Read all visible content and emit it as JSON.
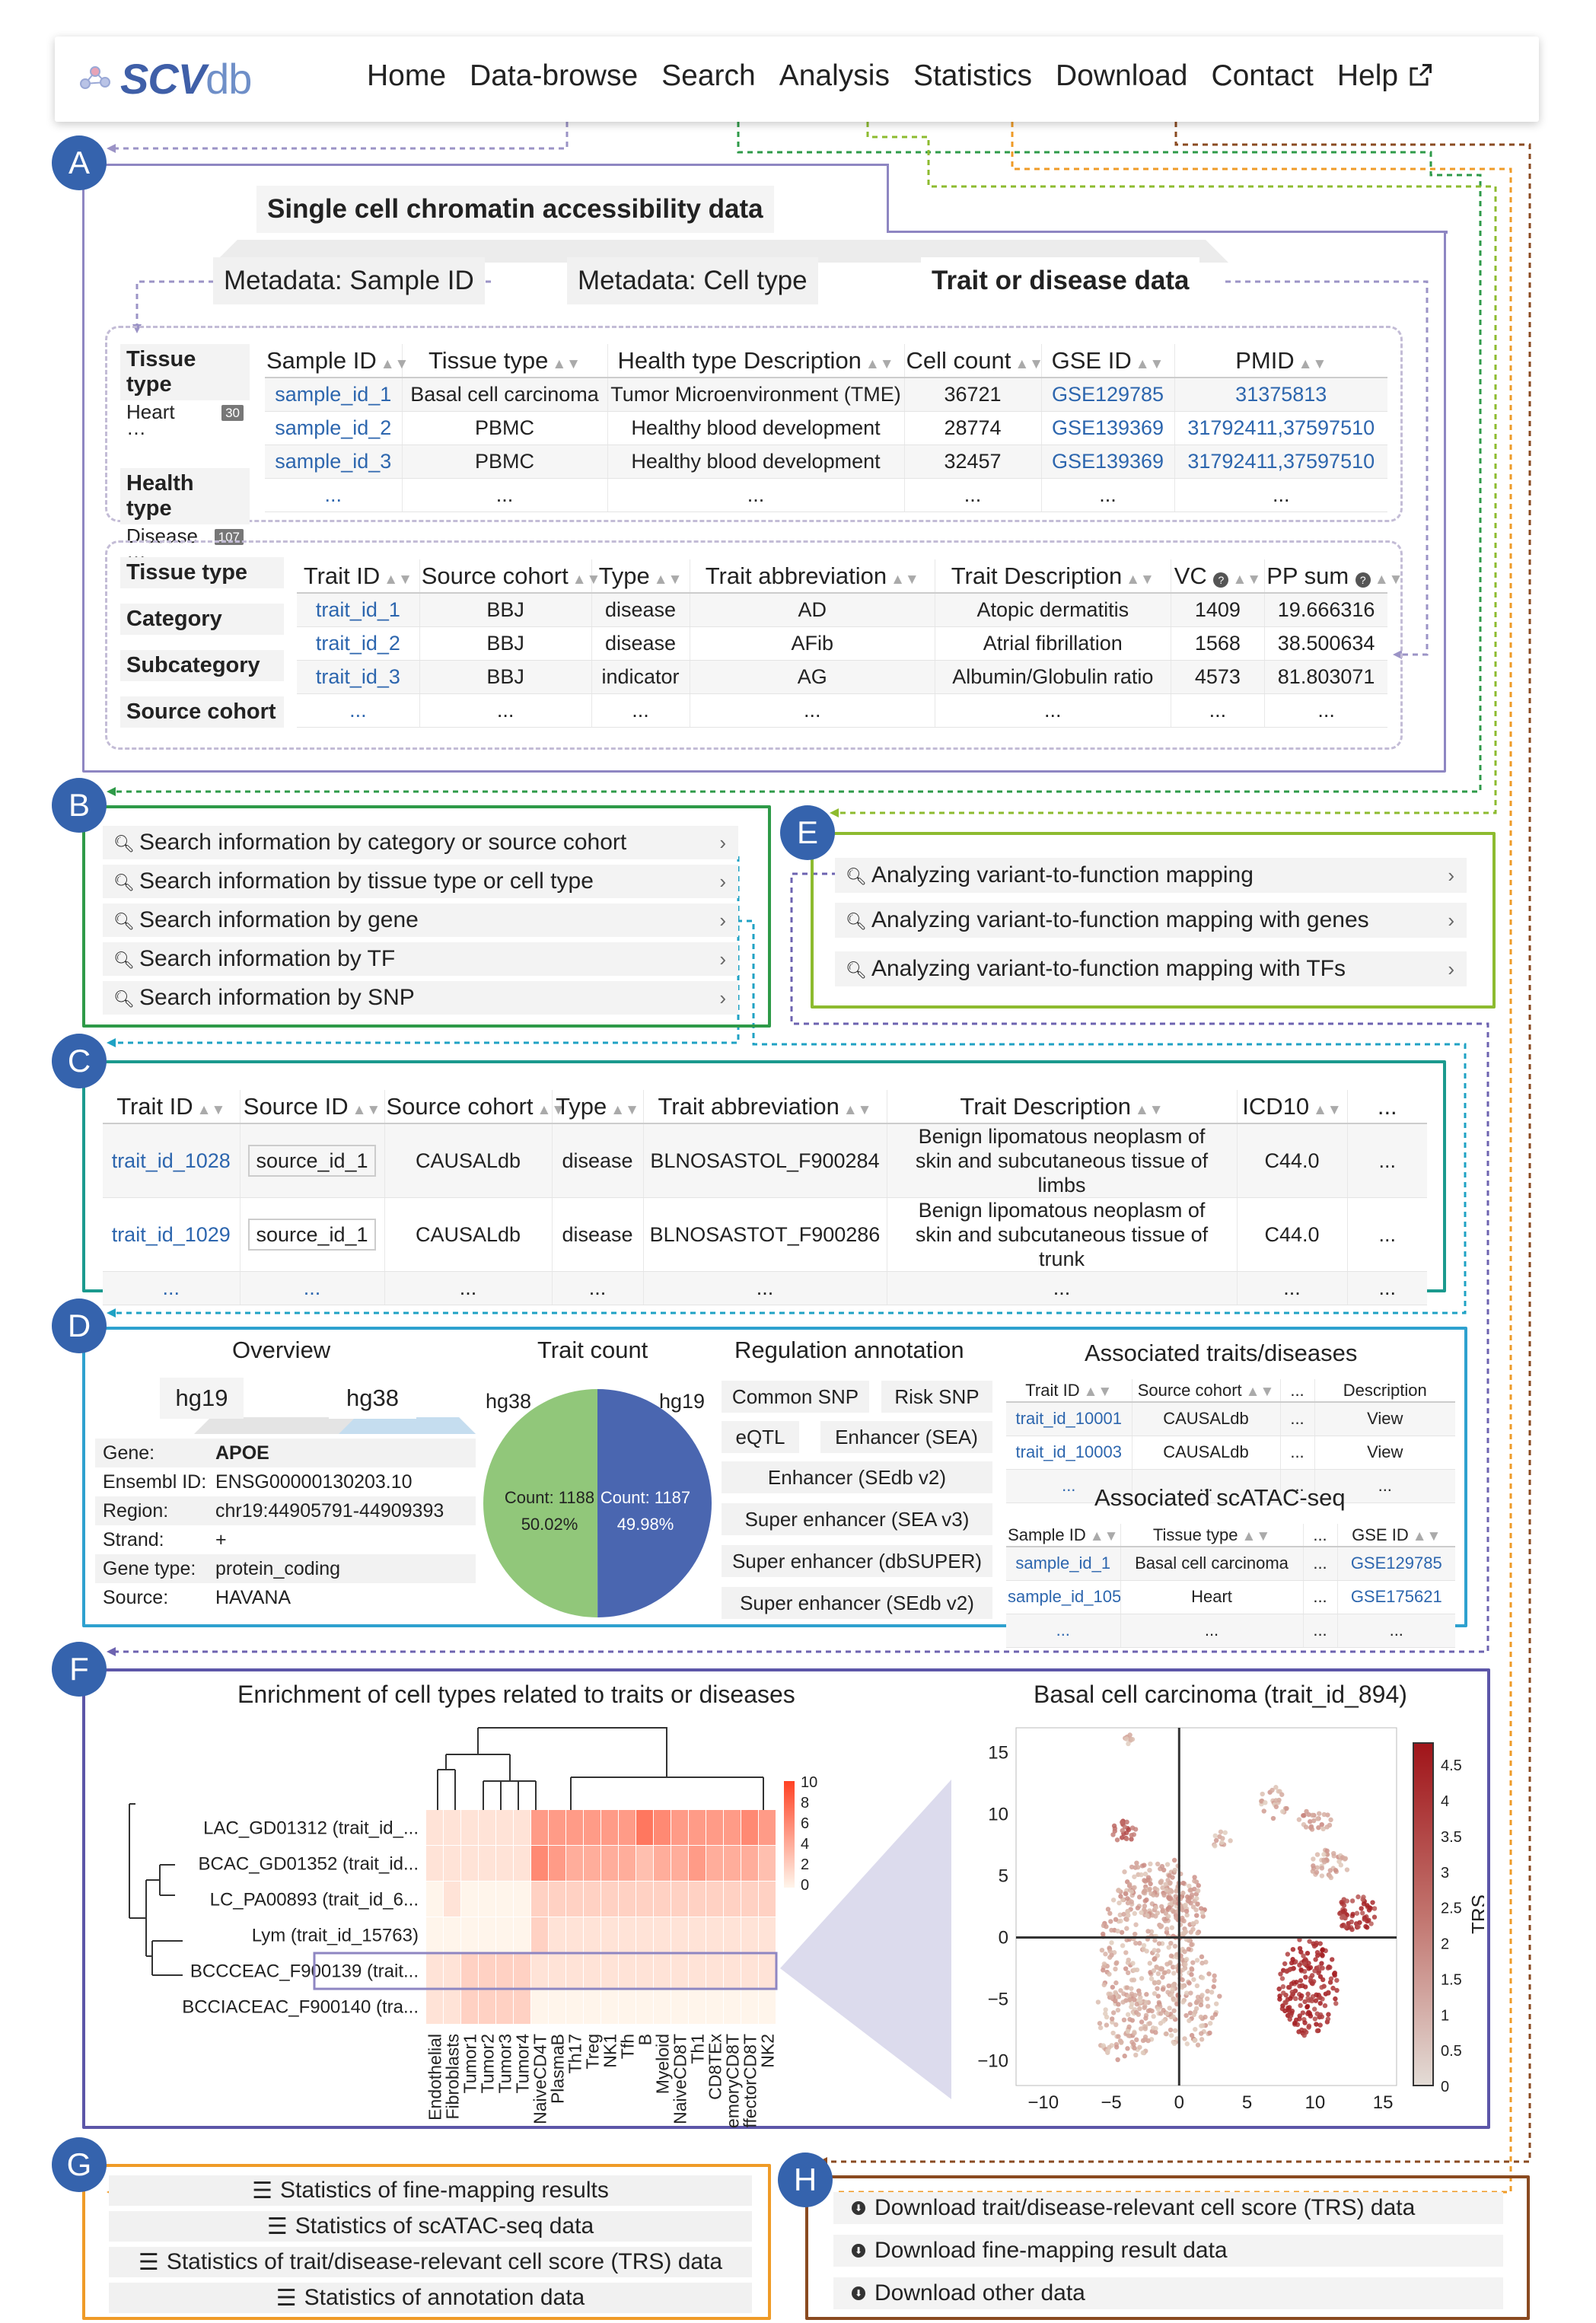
{
  "nav": {
    "logo_main": "SCV",
    "logo_suffix": "db",
    "items": [
      "Home",
      "Data-browse",
      "Search",
      "Analysis",
      "Statistics",
      "Download",
      "Contact",
      "Help"
    ]
  },
  "badges": [
    "A",
    "B",
    "C",
    "D",
    "E",
    "F",
    "G",
    "H"
  ],
  "A": {
    "title": "Single cell chromatin accessibility data",
    "tabs": [
      "Metadata: Sample ID",
      "Metadata: Cell type",
      "Trait or disease data"
    ],
    "facets1": {
      "tissue_type": "Tissue type",
      "tissue_val": "Heart",
      "tissue_count": "30",
      "health_type": "Health type",
      "health_val": "Disease",
      "health_count": "107"
    },
    "samples": {
      "headers": [
        "Sample ID",
        "Tissue type",
        "Health type Description",
        "Cell count",
        "GSE ID",
        "PMID"
      ],
      "rows": [
        [
          "sample_id_1",
          "Basal cell carcinoma",
          "Tumor Microenvironment (TME)",
          "36721",
          "GSE129785",
          "31375813"
        ],
        [
          "sample_id_2",
          "PBMC",
          "Healthy blood development",
          "28774",
          "GSE139369",
          "31792411,37597510"
        ],
        [
          "sample_id_3",
          "PBMC",
          "Healthy blood development",
          "32457",
          "GSE139369",
          "31792411,37597510"
        ],
        [
          "...",
          "...",
          "...",
          "...",
          "...",
          "..."
        ]
      ]
    },
    "facets2": [
      "Tissue type",
      "Category",
      "Subcategory",
      "Source cohort"
    ],
    "traits": {
      "headers": [
        "Trait ID",
        "Source cohort",
        "Type",
        "Trait abbreviation",
        "Trait Description",
        "VC",
        "PP sum"
      ],
      "rows": [
        [
          "trait_id_1",
          "BBJ",
          "disease",
          "AD",
          "Atopic dermatitis",
          "1409",
          "19.666316"
        ],
        [
          "trait_id_2",
          "BBJ",
          "disease",
          "AFib",
          "Atrial fibrillation",
          "1568",
          "38.500634"
        ],
        [
          "trait_id_3",
          "BBJ",
          "indicator",
          "AG",
          "Albumin/Globulin ratio",
          "4573",
          "81.803071"
        ],
        [
          "...",
          "...",
          "...",
          "...",
          "...",
          "...",
          "..."
        ]
      ]
    }
  },
  "B": {
    "items": [
      "Search information by category or source cohort",
      "Search information by tissue type or cell type",
      "Search information by gene",
      "Search information by TF",
      "Search information by SNP"
    ]
  },
  "E": {
    "items": [
      "Analyzing variant-to-function mapping",
      "Analyzing variant-to-function mapping with genes",
      "Analyzing variant-to-function mapping with TFs"
    ]
  },
  "C": {
    "headers": [
      "Trait ID",
      "Source ID",
      "Source cohort",
      "Type",
      "Trait abbreviation",
      "Trait Description",
      "ICD10",
      "..."
    ],
    "rows": [
      [
        "trait_id_1028",
        "source_id_1",
        "CAUSALdb",
        "disease",
        "BLNOSASTOL_F900284",
        "Benign lipomatous neoplasm of skin and subcutaneous tissue of limbs",
        "C44.0",
        "..."
      ],
      [
        "trait_id_1029",
        "source_id_1",
        "CAUSALdb",
        "disease",
        "BLNOSASTOT_F900286",
        "Benign lipomatous neoplasm of skin and subcutaneous tissue of trunk",
        "C44.0",
        "..."
      ],
      [
        "...",
        "...",
        "...",
        "...",
        "...",
        "...",
        "...",
        "..."
      ]
    ]
  },
  "D": {
    "overview": "Overview",
    "genome_tabs": [
      "hg19",
      "hg38"
    ],
    "gene_info": [
      [
        "Gene:",
        "APOE"
      ],
      [
        "Ensembl ID:",
        "ENSG00000130203.10"
      ],
      [
        "Region:",
        "chr19:44905791-44909393"
      ],
      [
        "Strand:",
        "+"
      ],
      [
        "Gene type:",
        "protein_coding"
      ],
      [
        "Source:",
        "HAVANA"
      ]
    ],
    "trait_count_title": "Trait count",
    "pie_labels": [
      "hg38",
      "hg19"
    ],
    "pie_text": [
      "Count: 1188",
      "50.02%",
      "Count: 1187",
      "49.98%"
    ],
    "reg_title": "Regulation annotation",
    "reg_items": [
      "Common SNP",
      "Risk SNP",
      "eQTL",
      "Enhancer (SEA)",
      "Enhancer (SEdb v2)",
      "Super enhancer (SEA v3)",
      "Super enhancer (dbSUPER)",
      "Super enhancer (SEdb v2)"
    ],
    "assoc_title": "Associated traits/diseases",
    "assoc_headers": [
      "Trait ID",
      "Source cohort",
      "...",
      "Description"
    ],
    "assoc_rows": [
      [
        "trait_id_10001",
        "CAUSALdb",
        "...",
        "View"
      ],
      [
        "trait_id_10003",
        "CAUSALdb",
        "...",
        "View"
      ],
      [
        "...",
        "...",
        "...",
        "..."
      ]
    ],
    "scatac_title": "Associated scATAC-seq",
    "scatac_headers": [
      "Sample ID",
      "Tissue type",
      "...",
      "GSE ID"
    ],
    "scatac_rows": [
      [
        "sample_id_1",
        "Basal cell carcinoma",
        "...",
        "GSE129785"
      ],
      [
        "sample_id_105",
        "Heart",
        "...",
        "GSE175621"
      ],
      [
        "...",
        "...",
        "...",
        "..."
      ]
    ]
  },
  "chart_data": [
    {
      "type": "pie",
      "title": "Trait count",
      "categories": [
        "hg38",
        "hg19"
      ],
      "values": [
        1188,
        1187
      ],
      "percent": [
        50.02,
        49.98
      ],
      "colors": [
        "#91c77a",
        "#4a66b0"
      ]
    },
    {
      "type": "heatmap",
      "title": "Enrichment of cell types related to traits or diseases",
      "rows": [
        "LAC_GD01312 (trait_id_...",
        "BCAC_GD01352 (trait_id...",
        "LC_PA00893 (trait_id_6...",
        "Lym (trait_id_15763)",
        "BCCCEAC_F900139 (trait...",
        "BCCIACEAC_F900140 (tra..."
      ],
      "columns": [
        "Endothelial",
        "Fibroblasts",
        "Tumor1",
        "Tumor2",
        "Tumor3",
        "Tumor4",
        "NaiveCD4T",
        "PlasmaB",
        "Th17",
        "Treg",
        "NK1",
        "Tfh",
        "B",
        "Myeloid",
        "NaiveCD8T",
        "Th1",
        "CD8TEx",
        "MemoryCD8T",
        "EffectorCD8T",
        "NK2"
      ],
      "values": [
        [
          1,
          1,
          1,
          1,
          1,
          1,
          5,
          5,
          5,
          5,
          5,
          5,
          7,
          6,
          5,
          5,
          5,
          5,
          6,
          5
        ],
        [
          1,
          1,
          1,
          1,
          1,
          1,
          6,
          5,
          4,
          4,
          4,
          4,
          3,
          4,
          4,
          5,
          4,
          4,
          4,
          3
        ],
        [
          0,
          1,
          0,
          0,
          0,
          0,
          2,
          2,
          2,
          2,
          2,
          2,
          2,
          2,
          2,
          2,
          2,
          2,
          2,
          2
        ],
        [
          0,
          0,
          0,
          0,
          0,
          0,
          2,
          1,
          1,
          1,
          1,
          1,
          1,
          1,
          1,
          1,
          1,
          1,
          1,
          1
        ],
        [
          1,
          1,
          2,
          2,
          2,
          2,
          1,
          1,
          1,
          1,
          1,
          1,
          1,
          1,
          1,
          1,
          1,
          1,
          1,
          1
        ],
        [
          1,
          1,
          2,
          2,
          2,
          2,
          0,
          0,
          0,
          0,
          0,
          0,
          0,
          0,
          0,
          0,
          0,
          0,
          0,
          0
        ]
      ],
      "colorbar_ticks": [
        10,
        8,
        6,
        4,
        2,
        0
      ],
      "highlight_row": "BCCCEAC_F900139 (trait..."
    },
    {
      "type": "scatter",
      "title": "Basal cell carcinoma (trait_id_894)",
      "xlim": [
        -12,
        16
      ],
      "ylim": [
        -12,
        17
      ],
      "xticks": [
        -10,
        -5,
        0,
        5,
        10,
        15
      ],
      "yticks": [
        15,
        10,
        5,
        0,
        -5,
        -10
      ],
      "colorbar_label": "TRS",
      "colorbar_ticks": [
        4.5,
        4,
        3.5,
        3,
        2.5,
        2,
        1.5,
        1,
        0.5,
        0
      ],
      "clusters": [
        {
          "x": -2.5,
          "y": -1,
          "rx": 3.5,
          "ry": 6,
          "trs": 0.8,
          "n": 260
        },
        {
          "x": -1.5,
          "y": 4,
          "rx": 3,
          "ry": 2.5,
          "trs": 0.9,
          "n": 120
        },
        {
          "x": 0.5,
          "y": -5,
          "rx": 2.5,
          "ry": 4,
          "trs": 0.7,
          "n": 120
        },
        {
          "x": -4,
          "y": -7,
          "rx": 2.5,
          "ry": 3,
          "trs": 0.6,
          "n": 90
        },
        {
          "x": 9.5,
          "y": -4,
          "rx": 2.2,
          "ry": 4,
          "trs": 3.8,
          "n": 180
        },
        {
          "x": 13,
          "y": 2,
          "rx": 1.5,
          "ry": 1.5,
          "trs": 3.5,
          "n": 60
        },
        {
          "x": 11,
          "y": 6,
          "rx": 1.5,
          "ry": 1.2,
          "trs": 0.8,
          "n": 40
        },
        {
          "x": 7,
          "y": 11,
          "rx": 1,
          "ry": 1.5,
          "trs": 0.6,
          "n": 25
        },
        {
          "x": 10,
          "y": 9.5,
          "rx": 1.2,
          "ry": 1,
          "trs": 1.0,
          "n": 25
        },
        {
          "x": -4,
          "y": 8.5,
          "rx": 1,
          "ry": 1,
          "trs": 2.5,
          "n": 25
        },
        {
          "x": -3.5,
          "y": 16,
          "rx": 0.5,
          "ry": 0.5,
          "trs": 0.6,
          "n": 8
        },
        {
          "x": 3,
          "y": 8,
          "rx": 0.8,
          "ry": 0.8,
          "trs": 0.5,
          "n": 12
        },
        {
          "x": 0.5,
          "y": 2,
          "rx": 1.5,
          "ry": 2.5,
          "trs": 0.9,
          "n": 60
        }
      ]
    }
  ],
  "G": {
    "items": [
      "Statistics of fine-mapping results",
      "Statistics of scATAC-seq data",
      "Statistics of trait/disease-relevant cell score (TRS) data",
      "Statistics of annotation data"
    ]
  },
  "H": {
    "items": [
      "Download trait/disease-relevant cell score (TRS) data",
      "Download fine-mapping result data",
      "Download other data"
    ]
  }
}
